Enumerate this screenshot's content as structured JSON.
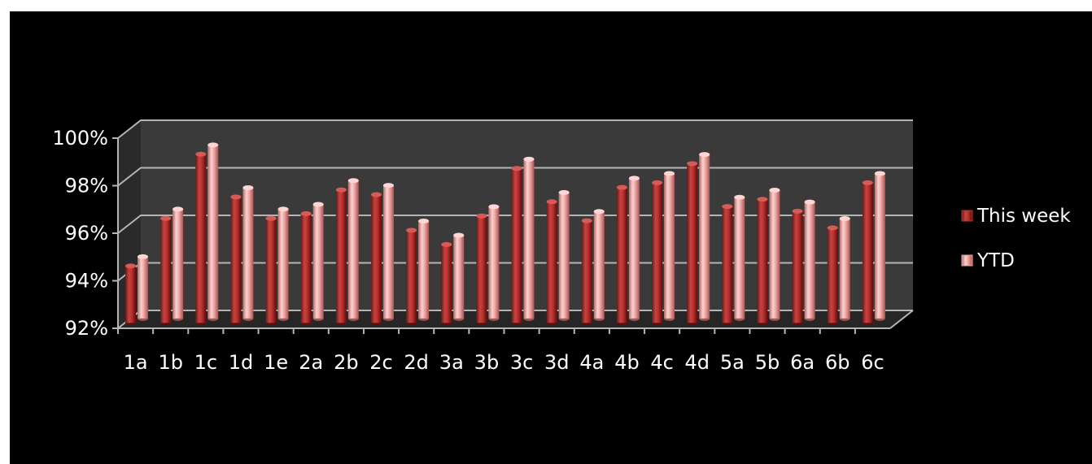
{
  "chart_data": {
    "type": "bar",
    "title": "",
    "xlabel": "",
    "ylabel": "",
    "categories": [
      "1a",
      "1b",
      "1c",
      "1d",
      "1e",
      "2a",
      "2b",
      "2c",
      "2d",
      "3a",
      "3b",
      "3c",
      "3d",
      "4a",
      "4b",
      "4c",
      "4d",
      "5a",
      "5b",
      "6a",
      "6b",
      "6c"
    ],
    "series": [
      {
        "name": "This week",
        "color": "#b8322f",
        "values": [
          94.4,
          96.4,
          99.1,
          97.3,
          96.4,
          96.6,
          97.6,
          97.4,
          95.9,
          95.3,
          96.5,
          98.5,
          97.1,
          96.3,
          97.7,
          97.9,
          98.7,
          96.9,
          97.2,
          96.7,
          96.0,
          97.9
        ]
      },
      {
        "name": "YTD",
        "color": "#f0a6a4",
        "values": [
          94.6,
          96.6,
          99.3,
          97.5,
          96.6,
          96.8,
          97.8,
          97.6,
          96.1,
          95.5,
          96.7,
          98.7,
          97.3,
          96.5,
          97.9,
          98.1,
          98.9,
          97.1,
          97.4,
          96.9,
          96.2,
          98.1
        ]
      }
    ],
    "ylim": [
      92,
      100
    ],
    "yticks": [
      "92%",
      "94%",
      "96%",
      "98%",
      "100%"
    ],
    "ytick_values": [
      92,
      94,
      96,
      98,
      100
    ],
    "grid": true,
    "legend_position": "right",
    "style": "3d-cylinder",
    "background": "#000000",
    "wall_color": "#3a3a3a",
    "floor_color": "#262626",
    "grid_color": "#b5b5b5"
  }
}
